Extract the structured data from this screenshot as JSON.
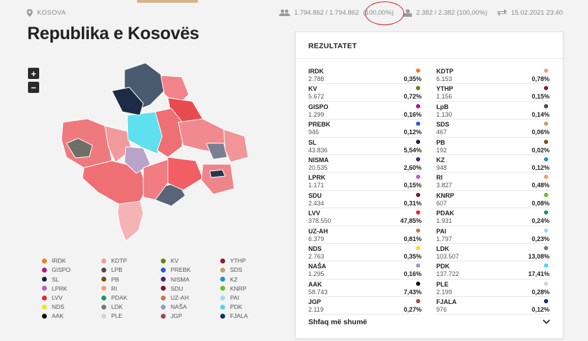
{
  "topbar": {
    "location": "KOSOVA",
    "voters": "1.794.862 / 1.794.862",
    "voters_pct": "(100,00%)",
    "stations": "2.382 / 2.382 (100,00%)",
    "updated": "15.02.2021 23:40"
  },
  "title": "Republika e Kosovës",
  "map": {
    "zoom_in": "+",
    "zoom_out": "−"
  },
  "legend": [
    {
      "name": "IRDK",
      "color": "#f07a1b"
    },
    {
      "name": "KDTP",
      "color": "#f59a9a"
    },
    {
      "name": "KV",
      "color": "#6e7a12"
    },
    {
      "name": "YTHP",
      "color": "#8a1a2a"
    },
    {
      "name": "GISPO",
      "color": "#b0128a"
    },
    {
      "name": "LPB",
      "color": "#4a4a4a"
    },
    {
      "name": "PREBK",
      "color": "#2a5bd4"
    },
    {
      "name": "SDS",
      "color": "#c6a16a"
    },
    {
      "name": "SL",
      "color": "#15233f"
    },
    {
      "name": "PB",
      "color": "#7a4e14"
    },
    {
      "name": "NISMA",
      "color": "#4a2a66"
    },
    {
      "name": "KZ",
      "color": "#1a93c6"
    },
    {
      "name": "LPRK",
      "color": "#b55ad0"
    },
    {
      "name": "RI",
      "color": "#f3a069"
    },
    {
      "name": "SDU",
      "color": "#7a1436"
    },
    {
      "name": "KNRP",
      "color": "#5fc323"
    },
    {
      "name": "LVV",
      "color": "#e4262f"
    },
    {
      "name": "PDAK",
      "color": "#17986a"
    },
    {
      "name": "UZ-AH",
      "color": "#c27a4a"
    },
    {
      "name": "PAI",
      "color": "#a8d8ea"
    },
    {
      "name": "NDS",
      "color": "#f3e21a"
    },
    {
      "name": "LDK",
      "color": "#777777"
    },
    {
      "name": "NAŠA",
      "color": "#8e9cc0"
    },
    {
      "name": "PDK",
      "color": "#4fd5e8"
    },
    {
      "name": "AAK",
      "color": "#111111"
    },
    {
      "name": "PLE",
      "color": "#d4d4d4"
    },
    {
      "name": "JGP",
      "color": "#9e4a4a"
    },
    {
      "name": "FJALA",
      "color": "#1a2a6a"
    }
  ],
  "results": {
    "title": "REZULTATET",
    "left": [
      {
        "name": "IRDK",
        "votes": "2.788",
        "pct": "0,35%",
        "color": "#f07a1b"
      },
      {
        "name": "KV",
        "votes": "5.672",
        "pct": "0,72%",
        "color": "#6e7a12"
      },
      {
        "name": "GISPO",
        "votes": "1.299",
        "pct": "0,16%",
        "color": "#b0128a"
      },
      {
        "name": "PREBK",
        "votes": "946",
        "pct": "0,12%",
        "color": "#2a5bd4"
      },
      {
        "name": "SL",
        "votes": "43.836",
        "pct": "5,54%",
        "color": "#15233f"
      },
      {
        "name": "NISMA",
        "votes": "20.535",
        "pct": "2,60%",
        "color": "#4a2a66"
      },
      {
        "name": "LPRK",
        "votes": "1.171",
        "pct": "0,15%",
        "color": "#b55ad0"
      },
      {
        "name": "SDU",
        "votes": "2.434",
        "pct": "0,31%",
        "color": "#7a1436"
      },
      {
        "name": "LVV",
        "votes": "378.550",
        "pct": "47,85%",
        "color": "#e4262f"
      },
      {
        "name": "UZ-AH",
        "votes": "6.379",
        "pct": "0,81%",
        "color": "#c27a4a"
      },
      {
        "name": "NDS",
        "votes": "2.763",
        "pct": "0,35%",
        "color": "#f3e21a"
      },
      {
        "name": "NAŠA",
        "votes": "1.295",
        "pct": "0,16%",
        "color": "#8e9cc0"
      },
      {
        "name": "AAK",
        "votes": "58.743",
        "pct": "7,43%",
        "color": "#111111"
      },
      {
        "name": "JGP",
        "votes": "2.119",
        "pct": "0,27%",
        "color": "#9e4a4a"
      }
    ],
    "right": [
      {
        "name": "KDTP",
        "votes": "6.153",
        "pct": "0,78%",
        "color": "#f59a9a"
      },
      {
        "name": "YTHP",
        "votes": "1.156",
        "pct": "0,15%",
        "color": "#8a1a2a"
      },
      {
        "name": "LpB",
        "votes": "1.130",
        "pct": "0,14%",
        "color": "#4a4a4a"
      },
      {
        "name": "SDS",
        "votes": "467",
        "pct": "0,06%",
        "color": "#c6a16a"
      },
      {
        "name": "PB",
        "votes": "192",
        "pct": "0,02%",
        "color": "#7a4e14"
      },
      {
        "name": "KZ",
        "votes": "948",
        "pct": "0,12%",
        "color": "#1a93c6"
      },
      {
        "name": "RI",
        "votes": "3.827",
        "pct": "0,48%",
        "color": "#f3a069"
      },
      {
        "name": "KNRP",
        "votes": "607",
        "pct": "0,08%",
        "color": "#5fc323"
      },
      {
        "name": "PDAK",
        "votes": "1.931",
        "pct": "0,24%",
        "color": "#17986a"
      },
      {
        "name": "PAI",
        "votes": "1.797",
        "pct": "0,23%",
        "color": "#a8d8ea"
      },
      {
        "name": "LDK",
        "votes": "103.507",
        "pct": "13,08%",
        "color": "#777777"
      },
      {
        "name": "PDK",
        "votes": "137.722",
        "pct": "17,41%",
        "color": "#4fd5e8"
      },
      {
        "name": "PLE",
        "votes": "2.199",
        "pct": "0,28%",
        "color": "#d4d4d4"
      },
      {
        "name": "FJALA",
        "votes": "976",
        "pct": "0,12%",
        "color": "#1a2a6a"
      }
    ],
    "show_more": "Shfaq më shumë"
  }
}
